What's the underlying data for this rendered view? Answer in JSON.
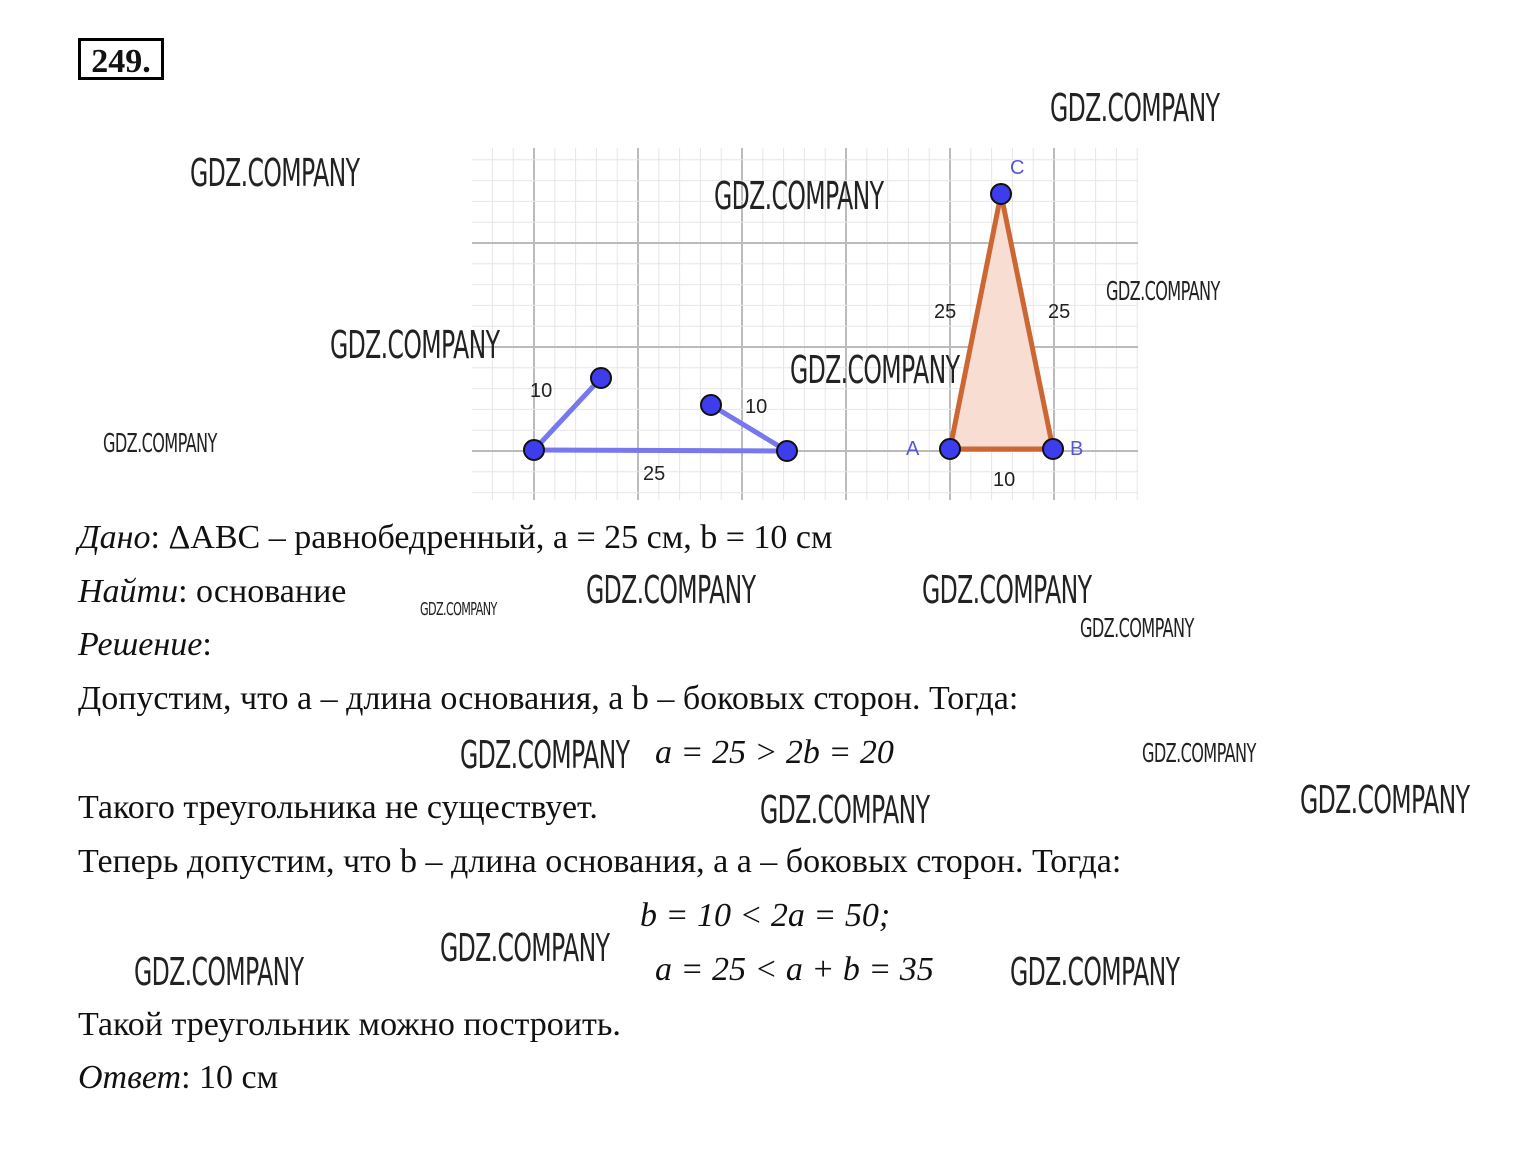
{
  "problem_number": "249.",
  "diagram": {
    "grid": true,
    "case1_labels": {
      "left_side": "10",
      "base": "25",
      "right_side": "10"
    },
    "case2_labels": {
      "left_side": "25",
      "right_side": "25",
      "base": "10",
      "A": "A",
      "B": "B",
      "C": "C"
    },
    "colors": {
      "case1": "#7777ee",
      "case2": "#cc6633",
      "fill": "#f7ddd2",
      "points": "#3333dd"
    }
  },
  "text": {
    "given_label": "Дано",
    "given_body": ": ΔABC – равнобедренный, a = 25 см, b = 10 см",
    "find_label": "Найти",
    "find_body": ": основание",
    "solution_label": "Решение",
    "solution_colon": ":",
    "line1": "Допустим, что a – длина основания, а b – боковых сторон. Тогда:",
    "formula1": "a = 25 > 2b = 20",
    "line2": "Такого треугольника не существует.",
    "line3": "Теперь допустим, что b – длина основания, а a – боковых сторон. Тогда:",
    "formula2": "b = 10 < 2a = 50;",
    "formula3": "a = 25 < a + b = 35",
    "line4": "Такой треугольник можно построить.",
    "answer_label": "Ответ",
    "answer_body": ": 10 см"
  },
  "watermark": "GDZ.COMPANY"
}
